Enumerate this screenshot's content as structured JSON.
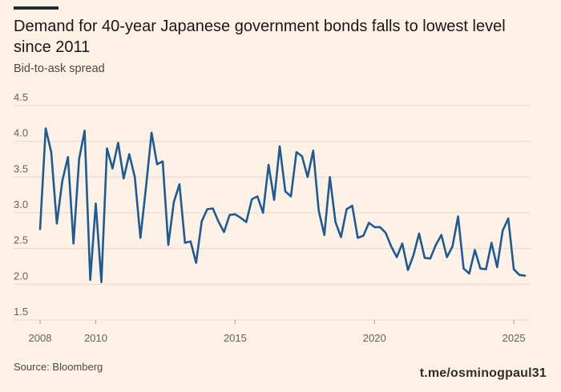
{
  "header": {
    "title": "Demand for 40-year Japanese government bonds falls to lowest level since 2011",
    "subtitle": "Bid-to-ask spread"
  },
  "footer": {
    "source": "Source: Bloomberg",
    "watermark": "t.me/osminogpaul31"
  },
  "colors": {
    "line": "#1d5b95",
    "grid": "#e6d9ce",
    "background": "#fdf1e6",
    "tick_text": "#66605c"
  },
  "chart_data": {
    "type": "line",
    "title": "Demand for 40-year Japanese government bonds falls to lowest level since 2011",
    "subtitle": "Bid-to-ask spread",
    "xlabel": "",
    "ylabel": "Bid-to-ask spread",
    "ylim": [
      1.5,
      4.5
    ],
    "xlim": [
      2008.0,
      2025.6
    ],
    "yticks": [
      "1.5",
      "2.0",
      "2.5",
      "3.0",
      "3.5",
      "4.0",
      "4.5"
    ],
    "yticks_values": [
      1.5,
      2.0,
      2.5,
      3.0,
      3.5,
      4.0,
      4.5
    ],
    "xticks": [
      "2008",
      "2010",
      "2015",
      "2020",
      "2025"
    ],
    "xticks_values": [
      2008,
      2010,
      2015,
      2020,
      2025
    ],
    "grid": true,
    "legend": "none",
    "series": [
      {
        "name": "Bid-to-ask spread",
        "x": [
          2008.0,
          2008.2,
          2008.4,
          2008.6,
          2008.8,
          2009.0,
          2009.2,
          2009.4,
          2009.6,
          2009.8,
          2010.0,
          2010.2,
          2010.4,
          2010.6,
          2010.8,
          2011.0,
          2011.2,
          2011.4,
          2011.6,
          2011.8,
          2012.0,
          2012.2,
          2012.4,
          2012.6,
          2012.8,
          2013.0,
          2013.2,
          2013.4,
          2013.6,
          2013.8,
          2014.0,
          2014.2,
          2014.4,
          2014.6,
          2014.8,
          2015.0,
          2015.2,
          2015.4,
          2015.6,
          2015.8,
          2016.0,
          2016.2,
          2016.4,
          2016.6,
          2016.8,
          2017.0,
          2017.2,
          2017.4,
          2017.6,
          2017.8,
          2018.0,
          2018.2,
          2018.4,
          2018.6,
          2018.8,
          2019.0,
          2019.2,
          2019.4,
          2019.6,
          2019.8,
          2020.0,
          2020.2,
          2020.4,
          2020.6,
          2020.8,
          2021.0,
          2021.2,
          2021.4,
          2021.6,
          2021.8,
          2022.0,
          2022.2,
          2022.4,
          2022.6,
          2022.8,
          2023.0,
          2023.2,
          2023.4,
          2023.6,
          2023.8,
          2024.0,
          2024.2,
          2024.4,
          2024.6,
          2024.8,
          2025.0,
          2025.2,
          2025.4
        ],
        "values": [
          2.77,
          4.18,
          3.85,
          2.85,
          3.45,
          3.78,
          2.57,
          3.75,
          4.15,
          2.06,
          3.13,
          2.03,
          3.9,
          3.62,
          3.98,
          3.48,
          3.82,
          3.5,
          2.65,
          3.35,
          4.12,
          3.68,
          3.72,
          2.55,
          3.15,
          3.4,
          2.58,
          2.6,
          2.3,
          2.88,
          3.05,
          3.06,
          2.88,
          2.73,
          2.97,
          2.98,
          2.93,
          2.87,
          3.19,
          3.23,
          3.0,
          3.67,
          3.18,
          3.93,
          3.3,
          3.23,
          3.85,
          3.79,
          3.5,
          3.87,
          3.03,
          2.69,
          3.5,
          2.87,
          2.66,
          3.05,
          3.1,
          2.65,
          2.68,
          2.86,
          2.8,
          2.8,
          2.72,
          2.53,
          2.38,
          2.57,
          2.2,
          2.41,
          2.71,
          2.37,
          2.36,
          2.55,
          2.69,
          2.38,
          2.53,
          2.95,
          2.22,
          2.15,
          2.48,
          2.22,
          2.21,
          2.58,
          2.24,
          2.75,
          2.92,
          2.21,
          2.13,
          2.12
        ]
      }
    ]
  }
}
